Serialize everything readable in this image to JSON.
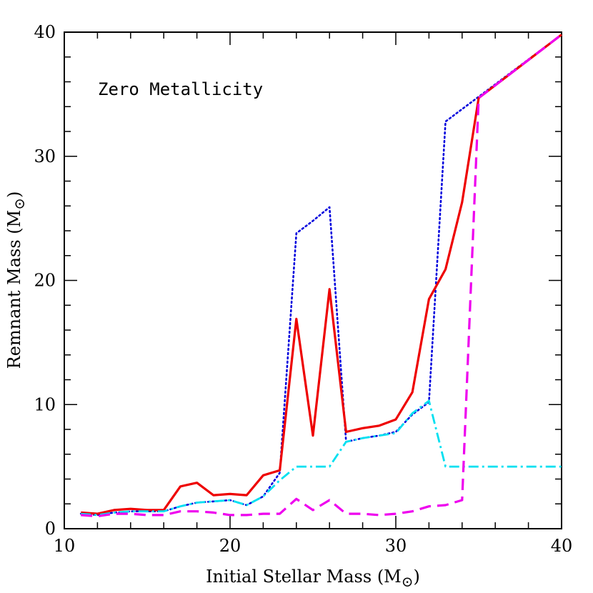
{
  "chart_data": {
    "type": "line",
    "title": "",
    "annotation": "Zero Metallicity",
    "xlabel": "Initial Stellar Mass (M",
    "ylabel": "Remnant Mass (M",
    "unit_symbol": "⊙",
    "xlim": [
      10,
      40
    ],
    "ylim": [
      0,
      40
    ],
    "xticks": [
      10,
      20,
      30,
      40
    ],
    "yticks": [
      0,
      10,
      20,
      30,
      40
    ],
    "grid": false,
    "series": [
      {
        "color": "#0000dd",
        "dash": "dotted",
        "x": [
          11,
          12,
          13,
          14,
          15,
          16,
          17,
          18,
          19,
          20,
          21,
          22,
          23,
          24,
          25,
          26,
          27,
          28,
          29,
          30,
          31,
          32,
          33,
          34,
          35,
          40
        ],
        "y": [
          1.2,
          1.1,
          1.3,
          1.4,
          1.4,
          1.4,
          1.8,
          2.1,
          2.2,
          2.3,
          1.9,
          2.6,
          4.5,
          23.8,
          24.8,
          25.9,
          7.0,
          7.3,
          7.5,
          7.8,
          9.2,
          10.2,
          32.8,
          33.8,
          34.8,
          39.8
        ]
      },
      {
        "color": "#ee0000",
        "dash": "solid",
        "x": [
          11,
          12,
          13,
          14,
          15,
          16,
          17,
          18,
          19,
          20,
          21,
          22,
          23,
          24,
          25,
          26,
          27,
          28,
          29,
          30,
          31,
          32,
          33,
          34,
          35,
          40
        ],
        "y": [
          1.3,
          1.2,
          1.5,
          1.6,
          1.5,
          1.5,
          3.4,
          3.7,
          2.7,
          2.8,
          2.7,
          4.3,
          4.7,
          16.9,
          7.5,
          19.3,
          7.8,
          8.1,
          8.3,
          8.8,
          11.0,
          18.5,
          20.9,
          26.3,
          34.7,
          39.8
        ]
      },
      {
        "color": "#00e0f0",
        "dash": "dashdot",
        "x": [
          11,
          12,
          13,
          14,
          15,
          16,
          17,
          18,
          19,
          20,
          21,
          22,
          23,
          24,
          25,
          26,
          27,
          28,
          29,
          30,
          31,
          32,
          33,
          34,
          35,
          40
        ],
        "y": [
          1.2,
          1.1,
          1.3,
          1.4,
          1.4,
          1.4,
          1.8,
          2.1,
          2.2,
          2.3,
          1.9,
          2.6,
          3.9,
          5.0,
          5.0,
          5.0,
          7.0,
          7.3,
          7.5,
          7.7,
          9.3,
          10.3,
          5.0,
          5.0,
          5.0,
          5.0
        ]
      },
      {
        "color": "#ee00ee",
        "dash": "dashed",
        "x": [
          11,
          12,
          13,
          14,
          15,
          16,
          17,
          18,
          19,
          20,
          21,
          22,
          23,
          24,
          25,
          26,
          27,
          28,
          29,
          30,
          31,
          32,
          33,
          34,
          35,
          40
        ],
        "y": [
          1.1,
          1.0,
          1.2,
          1.2,
          1.1,
          1.1,
          1.4,
          1.4,
          1.3,
          1.1,
          1.1,
          1.2,
          1.2,
          2.4,
          1.5,
          2.3,
          1.2,
          1.2,
          1.1,
          1.2,
          1.4,
          1.8,
          1.9,
          2.3,
          34.7,
          39.8
        ]
      }
    ]
  }
}
